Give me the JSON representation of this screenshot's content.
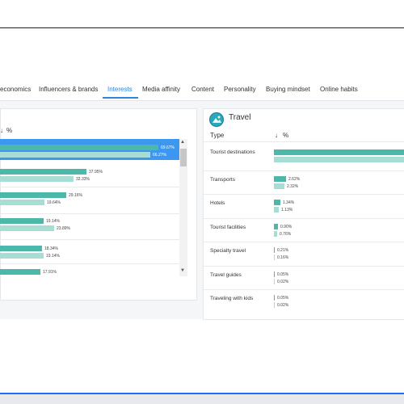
{
  "tabs": [
    {
      "label": "economics",
      "active": false
    },
    {
      "label": "Influencers & brands",
      "active": false
    },
    {
      "label": "Interests",
      "active": true
    },
    {
      "label": "Media affinity",
      "active": false
    },
    {
      "label": "Content",
      "active": false
    },
    {
      "label": "Personality",
      "active": false
    },
    {
      "label": "Buying mindset",
      "active": false
    },
    {
      "label": "Online habits",
      "active": false
    }
  ],
  "left_panel": {
    "sort_label": "%",
    "rows": [
      {
        "primary": "69.67%",
        "secondary": "66.27%",
        "primary_value": 69.67,
        "secondary_value": 66.27,
        "highlighted": true
      },
      {
        "primary": "37.95%",
        "secondary": "32.33%",
        "primary_value": 37.95,
        "secondary_value": 32.33
      },
      {
        "primary": "29.16%",
        "secondary": "19.64%",
        "primary_value": 29.16,
        "secondary_value": 19.64
      },
      {
        "primary": "19.14%",
        "secondary": "23.89%",
        "primary_value": 19.14,
        "secondary_value": 23.89
      },
      {
        "primary": "18.34%",
        "secondary": "19.14%",
        "primary_value": 18.34,
        "secondary_value": 19.14
      },
      {
        "primary": "17.91%",
        "primary_value": 17.91
      }
    ]
  },
  "right_panel": {
    "title": "Travel",
    "col_type": "Type",
    "col_pct": "%",
    "rows": [
      {
        "label": "Tourist destinations",
        "primary": "",
        "secondary": "",
        "primary_value": 80,
        "secondary_value": 80
      },
      {
        "label": "Transports",
        "primary": "2.62%",
        "secondary": "2.32%",
        "primary_value": 2.62,
        "secondary_value": 2.32
      },
      {
        "label": "Hotels",
        "primary": "1.34%",
        "secondary": "1.13%",
        "primary_value": 1.34,
        "secondary_value": 1.13
      },
      {
        "label": "Tourist facilities",
        "primary": "0.90%",
        "secondary": "0.76%",
        "primary_value": 0.9,
        "secondary_value": 0.76
      },
      {
        "label": "Specialty travel",
        "primary": "0.21%",
        "secondary": "0.16%",
        "primary_value": 0.21,
        "secondary_value": 0.16
      },
      {
        "label": "Travel guides",
        "primary": "0.05%",
        "secondary": "0.02%",
        "primary_value": 0.05,
        "secondary_value": 0.02
      },
      {
        "label": "Traveling with kids",
        "primary": "0.05%",
        "secondary": "0.02%",
        "primary_value": 0.05,
        "secondary_value": 0.02
      }
    ]
  },
  "colors": {
    "accent": "#2f86d6",
    "bar_primary": "#4bb8aa",
    "bar_secondary": "#a8ddd6",
    "highlight": "#3b97f0"
  }
}
